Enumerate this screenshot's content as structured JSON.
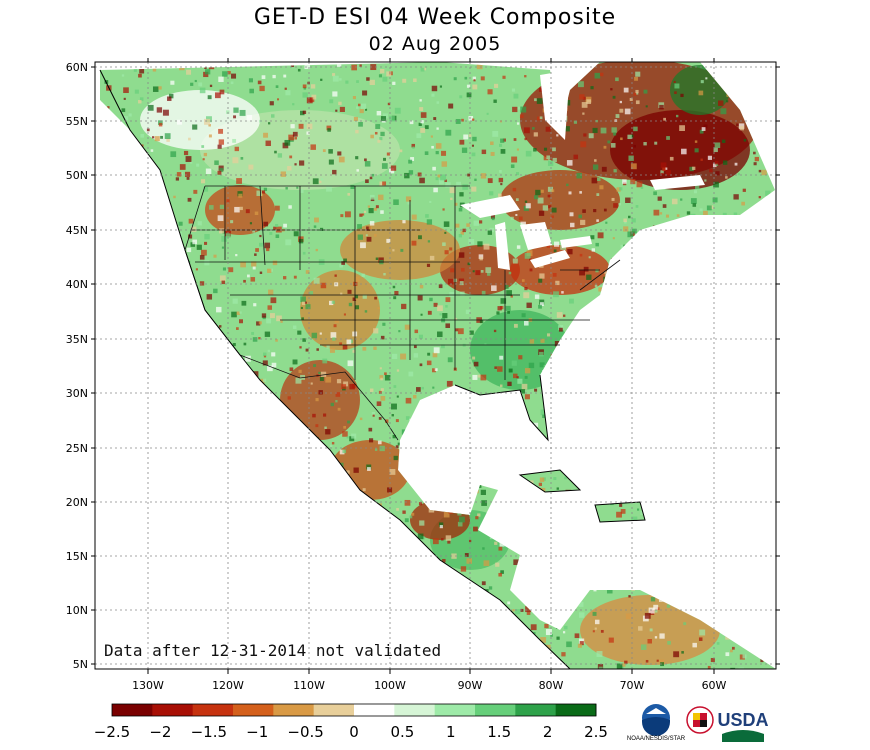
{
  "header": {
    "title": "GET-D ESI 04 Week Composite",
    "date": "02 Aug 2005"
  },
  "map": {
    "lat_labels": [
      "60N",
      "55N",
      "50N",
      "45N",
      "40N",
      "35N",
      "30N",
      "25N",
      "20N",
      "15N",
      "10N",
      "5N"
    ],
    "lon_labels": [
      "130W",
      "120W",
      "110W",
      "100W",
      "90W",
      "80W",
      "70W",
      "60W"
    ],
    "note": "Data after 12-31-2014 not validated"
  },
  "colorbar": {
    "labels": [
      "-2.5",
      "-2",
      "-1.5",
      "-1",
      "-0.5",
      "0",
      "0.5",
      "1",
      "1.5",
      "2",
      "2.5"
    ],
    "colors": [
      "#7a0000",
      "#a80f05",
      "#c6320f",
      "#d4601c",
      "#d99a45",
      "#e8cf9a",
      "#ffffff",
      "#d6f5d6",
      "#9eeaa8",
      "#66cf7a",
      "#2ea24a",
      "#0a6b18"
    ]
  },
  "logos": {
    "noaa_caption": "NOAA/NESDIS/STAR",
    "usda_text": "USDA"
  }
}
